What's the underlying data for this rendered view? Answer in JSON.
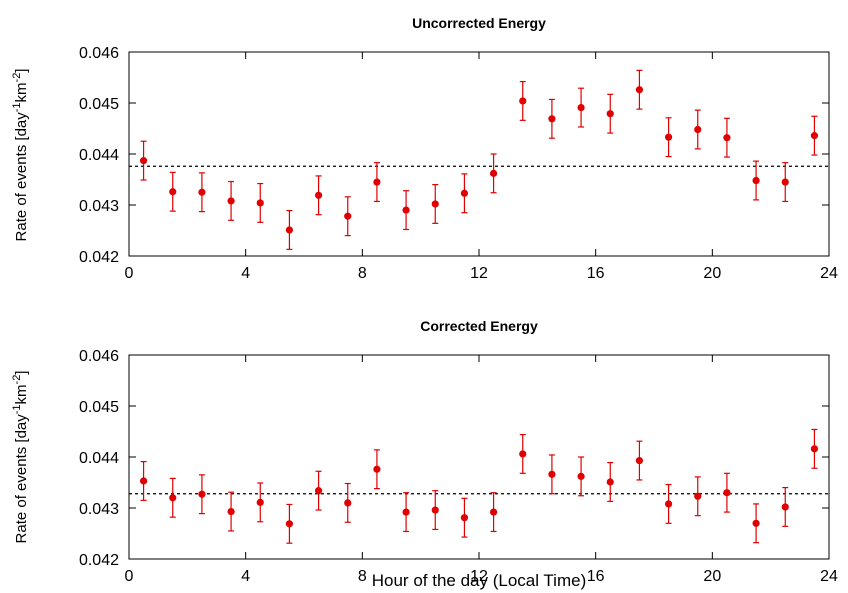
{
  "colors": {
    "points": "#e00000",
    "reference_line": "#000000",
    "axes": "#000000"
  },
  "xlabel": "Hour of the day (Local Time)",
  "chart_data": [
    {
      "type": "scatter",
      "title": "Uncorrected Energy",
      "ylabel_main": "Rate of events [day",
      "ylabel_sup1": "-1",
      "ylabel_mid": "km",
      "ylabel_sup2": "-2",
      "ylabel_end": "]",
      "xlim": [
        0,
        24
      ],
      "ylim": [
        0.042,
        0.046
      ],
      "xticks": [
        "0",
        "4",
        "8",
        "12",
        "16",
        "20",
        "24"
      ],
      "yticks": [
        "0.042",
        "0.043",
        "0.044",
        "0.045",
        "0.046"
      ],
      "reference_line": 0.04376,
      "grid": false,
      "x": [
        0.5,
        1.5,
        2.5,
        3.5,
        4.5,
        5.5,
        6.5,
        7.5,
        8.5,
        9.5,
        10.5,
        11.5,
        12.5,
        13.5,
        14.5,
        15.5,
        16.5,
        17.5,
        18.5,
        19.5,
        20.5,
        21.5,
        22.5,
        23.5
      ],
      "y": [
        0.04387,
        0.04326,
        0.04325,
        0.04308,
        0.04304,
        0.04251,
        0.04319,
        0.04278,
        0.04345,
        0.0429,
        0.04302,
        0.04323,
        0.04362,
        0.04504,
        0.04469,
        0.04491,
        0.04479,
        0.04526,
        0.04433,
        0.04448,
        0.04432,
        0.04348,
        0.04345,
        0.04436
      ],
      "yerr": [
        0.00038,
        0.00038,
        0.00038,
        0.00038,
        0.00038,
        0.00038,
        0.00038,
        0.00038,
        0.00038,
        0.00038,
        0.00038,
        0.00038,
        0.00038,
        0.00038,
        0.00038,
        0.00038,
        0.00038,
        0.00038,
        0.00038,
        0.00038,
        0.00038,
        0.00038,
        0.00038,
        0.00038
      ]
    },
    {
      "type": "scatter",
      "title": "Corrected Energy",
      "ylabel_main": "Rate of events [day",
      "ylabel_sup1": "-1",
      "ylabel_mid": "km",
      "ylabel_sup2": "-2",
      "ylabel_end": "]",
      "xlim": [
        0,
        24
      ],
      "ylim": [
        0.042,
        0.046
      ],
      "xticks": [
        "0",
        "4",
        "8",
        "12",
        "16",
        "20",
        "24"
      ],
      "yticks": [
        "0.042",
        "0.043",
        "0.044",
        "0.045",
        "0.046"
      ],
      "reference_line": 0.04328,
      "grid": false,
      "x": [
        0.5,
        1.5,
        2.5,
        3.5,
        4.5,
        5.5,
        6.5,
        7.5,
        8.5,
        9.5,
        10.5,
        11.5,
        12.5,
        13.5,
        14.5,
        15.5,
        16.5,
        17.5,
        18.5,
        19.5,
        20.5,
        21.5,
        22.5,
        23.5
      ],
      "y": [
        0.04353,
        0.0432,
        0.04327,
        0.04293,
        0.04311,
        0.04269,
        0.04334,
        0.0431,
        0.04376,
        0.04292,
        0.04296,
        0.04281,
        0.04292,
        0.04406,
        0.04366,
        0.04362,
        0.04351,
        0.04393,
        0.04308,
        0.04323,
        0.0433,
        0.0427,
        0.04302,
        0.04416
      ],
      "yerr": [
        0.00038,
        0.00038,
        0.00038,
        0.00038,
        0.00038,
        0.00038,
        0.00038,
        0.00038,
        0.00038,
        0.00038,
        0.00038,
        0.00038,
        0.00038,
        0.00038,
        0.00038,
        0.00038,
        0.00038,
        0.00038,
        0.00038,
        0.00038,
        0.00038,
        0.00038,
        0.00038,
        0.00038
      ]
    }
  ]
}
